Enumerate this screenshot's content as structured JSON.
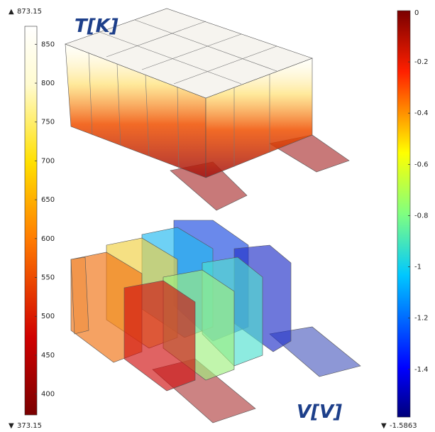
{
  "temperature_legend": {
    "label": "T[K]",
    "range": [
      373.15,
      873.15
    ],
    "ticks": [
      400,
      450,
      500,
      550,
      600,
      650,
      700,
      750,
      800,
      850
    ]
  },
  "voltage_legend": {
    "label": "V[V]",
    "range": [
      -1.5863,
      0
    ],
    "ticks": [
      -0.2,
      -0.4,
      -0.6,
      -0.8,
      -1,
      -1.2,
      -1.4
    ]
  }
}
